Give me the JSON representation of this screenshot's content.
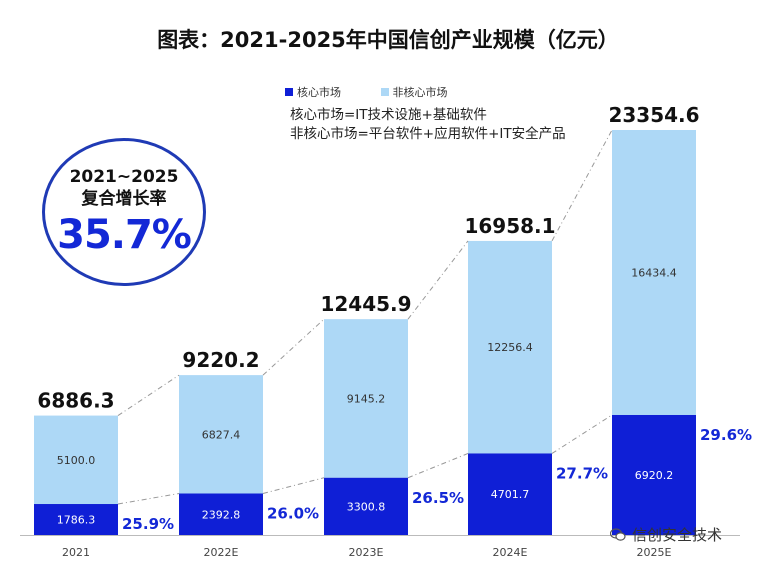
{
  "chart_data": {
    "type": "bar",
    "stacked": true,
    "title": "图表：2021-2025年中国信创产业规模（亿元）",
    "categories": [
      "2021",
      "2022E",
      "2023E",
      "2024E",
      "2025E"
    ],
    "series": [
      {
        "name": "核心市场",
        "color": "#0f1fd6",
        "values": [
          1786.3,
          2392.8,
          3300.8,
          4701.7,
          6920.2
        ]
      },
      {
        "name": "非核心市场",
        "color": "#add8f6",
        "values": [
          5100.0,
          6827.4,
          9145.2,
          12256.4,
          16434.4
        ]
      }
    ],
    "totals": [
      "6886.3",
      "9220.2",
      "12445.9",
      "16958.1",
      "23354.6"
    ],
    "core_labels": [
      "1786.3",
      "2392.8",
      "3300.8",
      "4701.7",
      "6920.2"
    ],
    "noncore_labels": [
      "5100.0",
      "6827.4",
      "9145.2",
      "12256.4",
      "16434.4"
    ],
    "core_share": [
      "25.9%",
      "26.0%",
      "26.5%",
      "27.7%",
      "29.6%"
    ],
    "ylim": [
      0,
      23354.6
    ],
    "xlabel": "",
    "ylabel": ""
  },
  "definitions": {
    "core": "核心市场=IT技术设施+基础软件",
    "noncore": "非核心市场=平台软件+应用软件+IT安全产品"
  },
  "cagr": {
    "line1": "2021~2025",
    "line2": "复合增长率",
    "value": "35.7%"
  },
  "watermark": {
    "text": "信创安全技术",
    "icon": "wechat-icon"
  },
  "colors": {
    "core": "#0f1fd6",
    "noncore": "#add8f6",
    "percent_text": "#1328d6",
    "circle_border": "#1f3ab5"
  }
}
